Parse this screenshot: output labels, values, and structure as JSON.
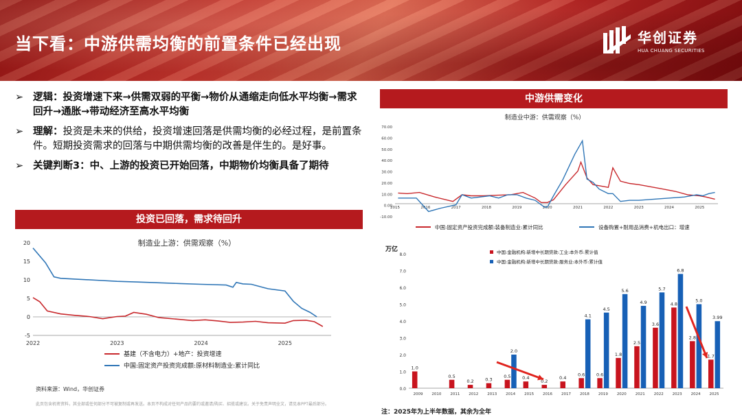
{
  "title": "当下看：中游供需均衡的前置条件已经出现",
  "logo": {
    "cn": "华创证券",
    "en": "HUA CHUANG SECURITIES"
  },
  "bullets": [
    {
      "head": "逻辑：投资增速下来→供需双弱的平衡→物价从通缩走向低水平均衡→需求回升→通胀→带动经济至高水平均衡",
      "body": ""
    },
    {
      "head": "理解：",
      "body": "投资是未来的供给，投资增速回落是供需均衡的必经过程，是前置条件。短期投资需求的回落与中期供需均衡的改善是伴生的。是好事。"
    },
    {
      "head": "关键判断3：中、上游的投资已开始回落，中期物价均衡具备了期待",
      "body": ""
    }
  ],
  "section_left": "投资已回落，需求待回升",
  "section_right": "中游供需变化",
  "source": "资料来源：Wind，华创证券",
  "disclaimer": "此页包含机密资料，其全部或任何部分不可被复制或再发送。本页不构成对任何产品的要约或邀请/购买、招揽或建议。关于免责声明全文，请见本PPT最后部分。",
  "note": "注：2025年为上半年数据，其余为全年",
  "colors": {
    "red": "#c8282c",
    "blue": "#2e75b6",
    "bar_red": "#c8141e",
    "bar_blue": "#1760b6"
  },
  "chart_data": [
    {
      "type": "line",
      "title": "制造业上游：供需观察（%）",
      "x_ticks": [
        "2022",
        "2023",
        "2024",
        "2025"
      ],
      "ylim": [
        -5,
        20
      ],
      "y_ticks": [
        -5,
        0,
        5,
        10,
        15,
        20
      ],
      "series": [
        {
          "name": "基建（不含电力）+地产：投资增速",
          "color": "red",
          "x": [
            2022.0,
            2022.08,
            2022.17,
            2022.33,
            2022.5,
            2022.67,
            2022.83,
            2023.0,
            2023.1,
            2023.2,
            2023.35,
            2023.5,
            2023.7,
            2023.9,
            2024.05,
            2024.2,
            2024.35,
            2024.5,
            2024.65,
            2024.8,
            2025.0,
            2025.1,
            2025.25,
            2025.35,
            2025.45
          ],
          "y": [
            5.2,
            4.1,
            1.6,
            0.8,
            0.4,
            0.1,
            -0.5,
            0.1,
            0.2,
            1.2,
            0.7,
            -0.2,
            -0.6,
            -1.0,
            -0.8,
            -1.1,
            -1.5,
            -1.4,
            -1.2,
            -1.6,
            -1.7,
            -1.0,
            -0.9,
            -1.3,
            -2.6
          ]
        },
        {
          "name": "中国:固定资产投资完成额:原材料制造业:累计同比",
          "color": "blue",
          "x": [
            2022.0,
            2022.15,
            2022.25,
            2022.33,
            2022.5,
            2022.75,
            2023.0,
            2023.25,
            2023.5,
            2023.75,
            2024.0,
            2024.3,
            2024.38,
            2024.42,
            2024.5,
            2024.6,
            2024.8,
            2025.0,
            2025.1,
            2025.2,
            2025.3,
            2025.38
          ],
          "y": [
            18.6,
            14.6,
            10.8,
            10.4,
            10.2,
            9.9,
            9.6,
            9.4,
            9.2,
            9.0,
            8.8,
            8.6,
            8.0,
            9.3,
            8.9,
            8.8,
            7.6,
            7.0,
            4.2,
            2.3,
            1.2,
            0.0
          ]
        }
      ]
    },
    {
      "type": "line",
      "title": "制造业中游：供需观察（%）",
      "x_ticks": [
        "2015",
        "2016",
        "2017",
        "2018",
        "2019",
        "2020",
        "2021",
        "2022",
        "2023",
        "2024",
        "2025"
      ],
      "ylim": [
        -10,
        70
      ],
      "y_ticks": [
        -10,
        0,
        10,
        20,
        30,
        40,
        50,
        60,
        70
      ],
      "y_tick_labels": [
        "-10.00",
        "0.00",
        "10.00",
        "20.00",
        "30.00",
        "40.00",
        "50.00",
        "60.00",
        "70.00"
      ],
      "series": [
        {
          "name": "中国:固定资产投资完成额:装备制造业:累计同比",
          "color": "red",
          "x": [
            2015.1,
            2015.4,
            2015.8,
            2016.3,
            2016.9,
            2017.2,
            2017.5,
            2017.9,
            2018.3,
            2018.8,
            2019.2,
            2019.6,
            2019.8,
            2020.0,
            2020.2,
            2020.6,
            2021.0,
            2021.1,
            2021.3,
            2021.5,
            2021.7,
            2022.0,
            2022.15,
            2022.4,
            2022.7,
            2023.0,
            2023.4,
            2023.8,
            2024.2,
            2024.6,
            2025.0,
            2025.2,
            2025.5
          ],
          "y": [
            10.5,
            10.0,
            11.0,
            7.0,
            3.0,
            9.0,
            8.0,
            8.0,
            8.5,
            9.0,
            11.0,
            6.0,
            2.0,
            2.0,
            4.5,
            18.0,
            30.0,
            38.0,
            24.0,
            18.0,
            17.0,
            15.5,
            33.0,
            21.0,
            19.0,
            18.0,
            16.0,
            14.0,
            12.0,
            9.0,
            8.0,
            7.0,
            5.0
          ]
        },
        {
          "name": "设备购置+耐用品消费+机电出口：增速",
          "color": "blue",
          "x": [
            2015.1,
            2015.7,
            2016.1,
            2016.5,
            2017.0,
            2017.2,
            2017.5,
            2017.8,
            2018.1,
            2018.4,
            2018.7,
            2019.0,
            2019.3,
            2019.6,
            2019.9,
            2020.0,
            2020.2,
            2020.5,
            2020.9,
            2021.15,
            2021.3,
            2021.5,
            2021.7,
            2022.0,
            2022.15,
            2022.4,
            2022.7,
            2023.0,
            2023.5,
            2024.0,
            2024.5,
            2024.9,
            2025.1,
            2025.3,
            2025.5
          ],
          "y": [
            6.0,
            6.0,
            -6.0,
            -3.0,
            0.0,
            9.0,
            6.0,
            7.0,
            8.0,
            6.0,
            9.0,
            9.0,
            6.0,
            4.0,
            -2.0,
            -2.0,
            8.0,
            22.0,
            45.0,
            57.0,
            23.0,
            20.0,
            14.0,
            10.0,
            10.0,
            3.0,
            4.0,
            4.0,
            5.0,
            6.0,
            7.0,
            9.0,
            8.0,
            10.0,
            11.0
          ]
        }
      ]
    },
    {
      "type": "bar",
      "title": "",
      "ylabel": "万亿",
      "ylim": [
        0,
        8
      ],
      "y_ticks": [
        0,
        1,
        2,
        3,
        4,
        5,
        6,
        7,
        8
      ],
      "y_tick_labels": [
        "0.0",
        "1.0",
        "2.0",
        "3.0",
        "4.0",
        "5.0",
        "6.0",
        "7.0",
        "8.0"
      ],
      "categories": [
        "2009",
        "2010",
        "2011",
        "2012",
        "2013",
        "2014",
        "2015",
        "2016",
        "2017",
        "2018",
        "2019",
        "2020",
        "2021",
        "2022",
        "2023",
        "2024",
        "2025"
      ],
      "series": [
        {
          "name": "中国:金融机构:新增中长期贷款:工业:本外币:累计值",
          "color": "bar_red",
          "values": [
            1.0,
            null,
            0.5,
            0.2,
            0.3,
            0.5,
            0.4,
            0.2,
            0.4,
            0.6,
            0.6,
            1.8,
            2.5,
            3.6,
            4.8,
            2.8,
            1.7
          ]
        },
        {
          "name": "中国:金融机构:新增中长期贷款:服务业:本外币:累计值",
          "color": "bar_blue",
          "values": [
            null,
            null,
            null,
            null,
            null,
            2.0,
            null,
            null,
            null,
            4.1,
            4.5,
            5.6,
            4.9,
            5.7,
            6.8,
            5.0,
            3.99
          ]
        }
      ],
      "data_labels": {
        "red": [
          "1.0",
          "",
          "0.5",
          "0.2",
          "0.3",
          "0.5",
          "0.4",
          "0.2",
          "0.4",
          "0.6",
          "0.6",
          "1.8",
          "2.5",
          "3.6",
          "4.8",
          "2.8",
          "1.7"
        ],
        "blue": [
          "",
          "",
          "",
          "",
          "",
          "2.0",
          "",
          "",
          "",
          "4.1",
          "4.5",
          "5.6",
          "4.9",
          "5.7",
          "6.8",
          "5.0",
          "3.99"
        ]
      }
    }
  ]
}
